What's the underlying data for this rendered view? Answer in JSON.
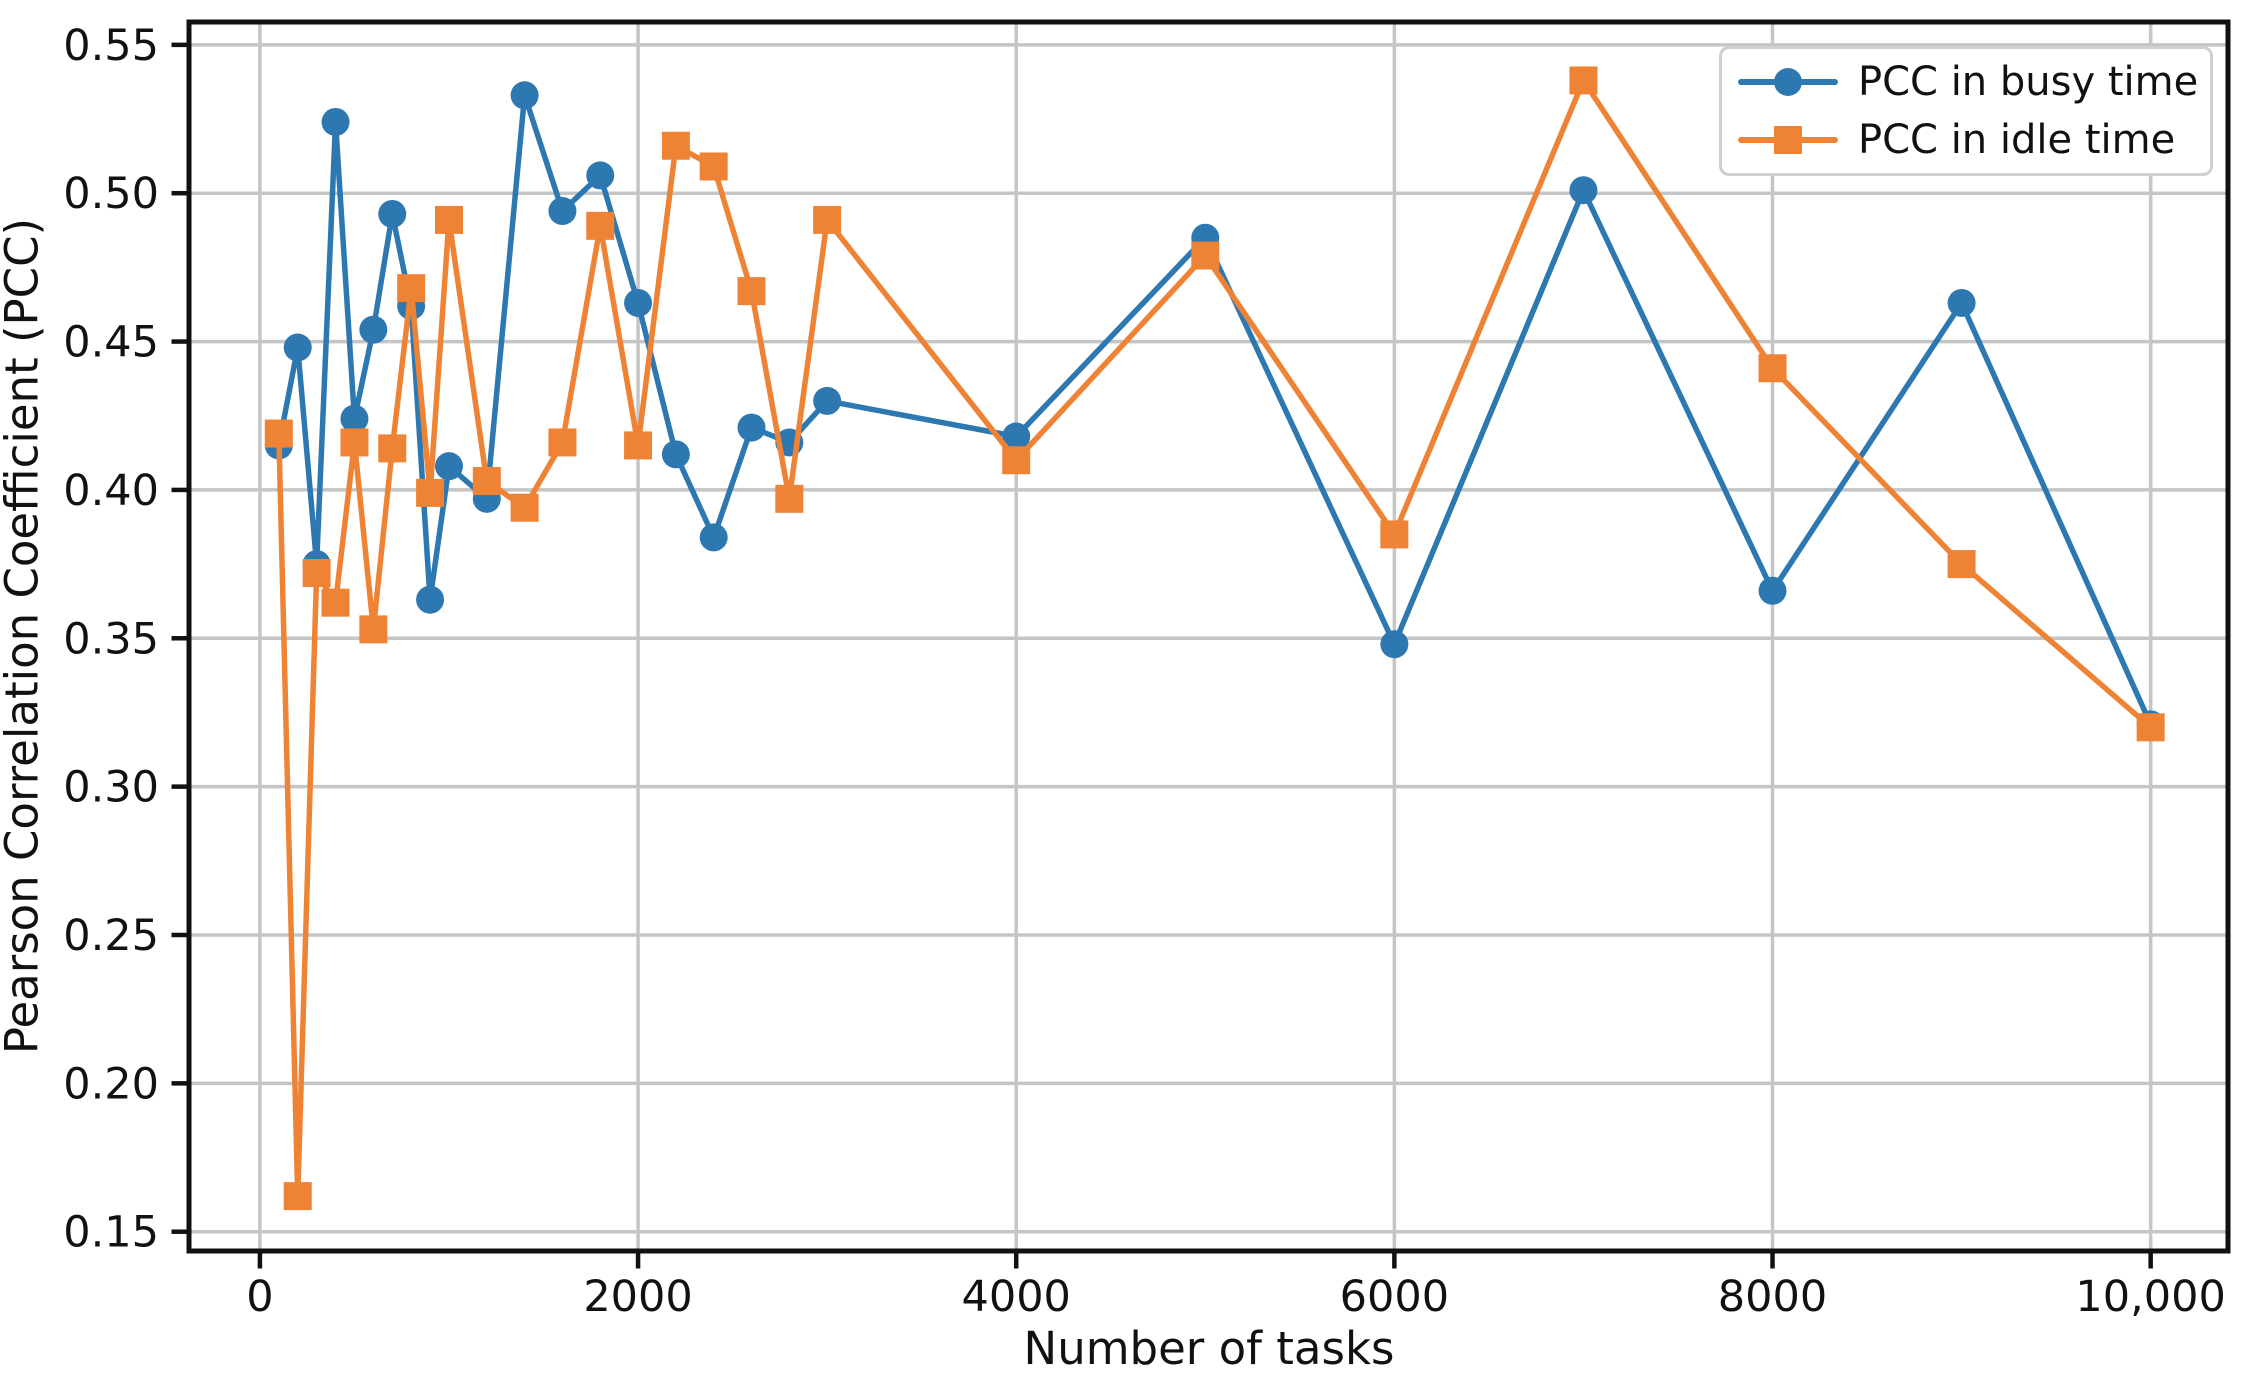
{
  "chart_data": {
    "type": "line",
    "title": "",
    "xlabel": "Number of tasks",
    "ylabel": "Pearson Correlation Coefficient (PCC)",
    "x": [
      100,
      200,
      300,
      400,
      500,
      600,
      700,
      800,
      900,
      1000,
      1200,
      1400,
      1600,
      1800,
      2000,
      2200,
      2400,
      2600,
      2800,
      3000,
      4000,
      5000,
      6000,
      7000,
      8000,
      9000,
      10000
    ],
    "series": [
      {
        "name": "PCC in busy time",
        "marker": "circle",
        "color": "#2E78B1",
        "values": [
          0.415,
          0.448,
          0.375,
          0.524,
          0.424,
          0.454,
          0.493,
          0.462,
          0.363,
          0.408,
          0.397,
          0.533,
          0.494,
          0.506,
          0.463,
          0.412,
          0.384,
          0.421,
          0.416,
          0.43,
          0.418,
          0.485,
          0.348,
          0.501,
          0.366,
          0.463,
          0.321
        ]
      },
      {
        "name": "PCC in idle time",
        "marker": "square",
        "color": "#EF8335",
        "values": [
          0.419,
          0.162,
          0.372,
          0.362,
          0.416,
          0.353,
          0.414,
          0.468,
          0.399,
          0.491,
          0.403,
          0.394,
          0.416,
          0.489,
          0.415,
          0.516,
          0.509,
          0.467,
          0.397,
          0.491,
          0.41,
          0.479,
          0.385,
          0.538,
          0.441,
          0.375,
          0.32
        ]
      }
    ],
    "xticks": {
      "values": [
        0,
        2000,
        4000,
        6000,
        8000,
        10000
      ],
      "labels": [
        "0",
        "2000",
        "4000",
        "6000",
        "8000",
        "10,000"
      ]
    },
    "yticks": {
      "values": [
        0.15,
        0.2,
        0.25,
        0.3,
        0.35,
        0.4,
        0.45,
        0.5,
        0.55
      ],
      "labels": [
        "0.15",
        "0.20",
        "0.25",
        "0.30",
        "0.35",
        "0.40",
        "0.45",
        "0.50",
        "0.55"
      ]
    },
    "xlim": [
      -375,
      10409
    ],
    "ylim": [
      0.1435,
      0.5577
    ],
    "grid": true,
    "grid_color": "#C5C5C5",
    "spine_color": "#111111",
    "text_color": "#111111",
    "background": "#FFFFFF",
    "legend_position": "upper right"
  }
}
